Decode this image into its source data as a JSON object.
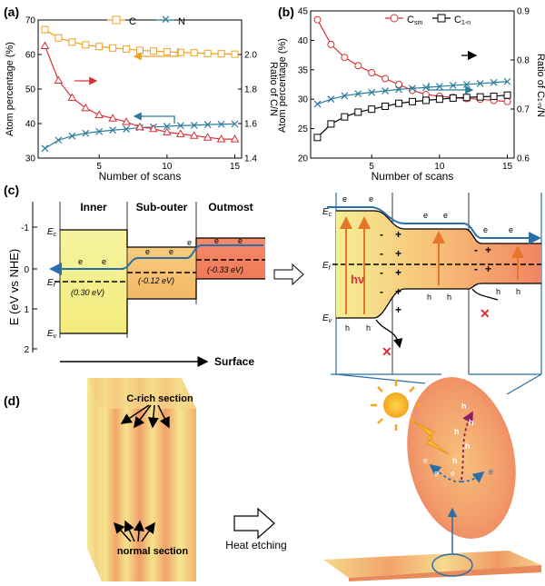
{
  "panel_labels": {
    "a": "(a)",
    "b": "(b)",
    "c": "(c)",
    "d": "(d)"
  },
  "colors": {
    "orange": "#F0A020",
    "teal": "#2A7C9A",
    "red": "#D93035",
    "black": "#000000",
    "blue_line": "#2A6FA8"
  },
  "chart_data": [
    {
      "type": "line",
      "xlabel": "Number of scans",
      "ylabel": "Atom percentage (%)",
      "ylabel_right": "Ratio of C/N",
      "x": [
        1,
        2,
        3,
        4,
        5,
        6,
        7,
        8,
        9,
        10,
        11,
        12,
        13,
        14,
        15
      ],
      "xlim": [
        0.5,
        15.5
      ],
      "ylim": [
        30,
        70
      ],
      "ylim_right": [
        1.4,
        2.2
      ],
      "x_ticks": [
        "5",
        "10",
        "15"
      ],
      "y_ticks": [
        "30",
        "40",
        "50",
        "60",
        "70"
      ],
      "y_ticks_right": [
        "1.4",
        "1.6",
        "1.8",
        "2.0"
      ],
      "series": [
        {
          "name": "C",
          "axis": "left",
          "marker": "square",
          "color": "#F0A020",
          "values": [
            67.2,
            64.8,
            63.6,
            62.8,
            62.3,
            61.9,
            61.6,
            61.2,
            61.0,
            60.8,
            60.6,
            60.5,
            60.3,
            60.2,
            60.1
          ]
        },
        {
          "name": "N",
          "axis": "left",
          "marker": "x",
          "color": "#2A7C9A",
          "values": [
            32.8,
            35.2,
            36.4,
            37.2,
            37.7,
            38.1,
            38.4,
            38.8,
            39.0,
            39.2,
            39.4,
            39.5,
            39.7,
            39.8,
            39.9
          ]
        },
        {
          "name": "",
          "axis": "right",
          "marker": "triangle",
          "color": "#D93035",
          "values": [
            2.05,
            1.85,
            1.75,
            1.69,
            1.65,
            1.63,
            1.61,
            1.58,
            1.57,
            1.55,
            1.54,
            1.53,
            1.52,
            1.51,
            1.51
          ]
        }
      ]
    },
    {
      "type": "line",
      "xlabel": "Number of scans",
      "ylabel": "Atom percentage (%)",
      "ylabel_right": "Ratio of C",
      "ylabel_right_sub": "1-n",
      "ylabel_right_tail": "/N",
      "x": [
        1,
        2,
        3,
        4,
        5,
        6,
        7,
        8,
        9,
        10,
        11,
        12,
        13,
        14,
        15
      ],
      "xlim": [
        0.5,
        15.5
      ],
      "ylim": [
        20,
        45
      ],
      "ylim_right": [
        0.6,
        0.9
      ],
      "x_ticks": [
        "5",
        "10",
        "15"
      ],
      "y_ticks": [
        "20",
        "25",
        "30",
        "35",
        "40",
        "45"
      ],
      "y_ticks_right": [
        "0.6",
        "0.7",
        "0.8",
        "0.9"
      ],
      "series": [
        {
          "name": "C",
          "name_sub": "sm",
          "axis": "left",
          "marker": "circle",
          "color": "#D93035",
          "values": [
            43.5,
            39.3,
            37.1,
            35.7,
            34.5,
            33.5,
            32.5,
            31.5,
            30.8,
            30.5,
            30.3,
            30.1,
            30.0,
            29.8,
            29.6
          ]
        },
        {
          "name": "C",
          "name_sub": "1-n",
          "axis": "left",
          "marker": "square",
          "color": "#000000",
          "values": [
            23.5,
            25.8,
            27.0,
            27.8,
            28.3,
            28.8,
            29.3,
            29.6,
            29.8,
            30.0,
            30.2,
            30.3,
            30.4,
            30.5,
            30.7
          ]
        },
        {
          "name": "",
          "axis": "right",
          "marker": "x",
          "color": "#2A7C9A",
          "values": [
            0.71,
            0.72,
            0.727,
            0.731,
            0.734,
            0.737,
            0.74,
            0.742,
            0.744,
            0.746,
            0.748,
            0.75,
            0.752,
            0.754,
            0.756
          ]
        }
      ]
    }
  ],
  "band_diagram": {
    "ylabel": "E (eV vs NHE)",
    "y_ticks": [
      "-1",
      "0",
      "1",
      "2"
    ],
    "regions": [
      "Inner",
      "Sub-outer",
      "Outmost"
    ],
    "values": [
      "(0.30 eV)",
      "(-0.12 eV)",
      "(-0.33 eV)"
    ],
    "ec": "E",
    "ec_sub": "c",
    "ef": "E",
    "ef_sub": "f",
    "ev": "E",
    "ev_sub": "v",
    "electron": "e",
    "surface": "Surface"
  },
  "band_right": {
    "ec": "E",
    "ec_sub": "c",
    "ef": "E",
    "ef_sub": "f",
    "ev": "E",
    "ev_sub": "v",
    "hv": "hν",
    "hole": "h",
    "electron": "e",
    "plus": "+",
    "minus": "-"
  },
  "panel_d": {
    "c_rich": "C-rich section",
    "normal": "normal section",
    "heat": "Heat etching",
    "hole": "h",
    "electron": "e"
  }
}
